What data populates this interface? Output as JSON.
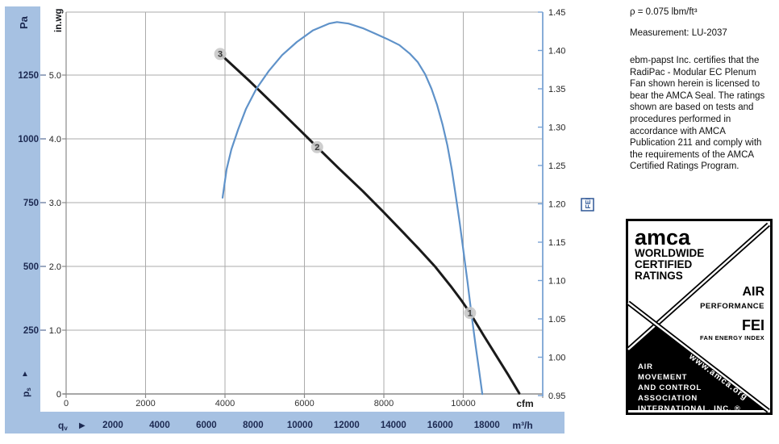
{
  "side_panel": {
    "density_note": "ρ = 0.075 lbm/ft³",
    "measurement": "Measurement: LU-2037",
    "certification_text": "ebm-papst Inc. certifies that the RadiPac - Modular EC Plenum Fan shown herein is licensed to bear the AMCA Seal. The ratings shown are based on tests and procedures performed in accordance with AMCA Publication 211 and comply with the requirements of the AMCA Certified Ratings Program."
  },
  "seal": {
    "logo": "amca",
    "worldwide": "WORLDWIDE",
    "certified": "CERTIFIED",
    "ratings": "RATINGS",
    "air": "AIR",
    "performance": "PERFORMANCE",
    "fei": "FEI",
    "fan_energy_index": "FAN ENERGY INDEX",
    "org_lines": [
      "AIR",
      "MOVEMENT",
      "AND CONTROL",
      "ASSOCIATION",
      "INTERNATIONAL, INC. ®"
    ],
    "url": "www.amca.org"
  },
  "chart_data": {
    "type": "line",
    "title": "",
    "grid": true,
    "axes": {
      "left_pa": {
        "label": "Pa",
        "corner_label": "ps",
        "corner_arrow": "▲",
        "tick_labels": [
          "1250",
          "1000",
          "750",
          "500",
          "250"
        ],
        "tick_values": [
          1250,
          1000,
          750,
          500,
          250
        ]
      },
      "left_inwg": {
        "label": "in.wg",
        "tick_labels": [
          "5.0",
          "4.0",
          "3.0",
          "2.0",
          "1.0",
          "0"
        ],
        "tick_values": [
          5,
          4,
          3,
          2,
          1,
          0
        ],
        "range": [
          0,
          5.99
        ]
      },
      "right_fei": {
        "label": "FEI",
        "tick_labels": [
          "1.45",
          "1.40",
          "1.35",
          "1.30",
          "1.25",
          "1.20",
          "1.15",
          "1.10",
          "1.05",
          "1.00",
          "0.95"
        ],
        "tick_values": [
          1.45,
          1.4,
          1.35,
          1.3,
          1.25,
          1.2,
          1.15,
          1.1,
          1.05,
          1.0,
          0.95
        ],
        "range": [
          0.95,
          1.45
        ]
      },
      "bottom_cfm": {
        "label": "cfm",
        "prefix": "qv",
        "prefix_arrow": "▶",
        "tick_labels": [
          "0",
          "2000",
          "4000",
          "6000",
          "8000",
          "10000"
        ],
        "tick_values": [
          0,
          2000,
          4000,
          6000,
          8000,
          10000
        ],
        "grid_values": [
          2000,
          4000,
          6000,
          8000,
          10000
        ],
        "range": [
          0,
          12000
        ]
      },
      "bottom_m3h": {
        "label": "m³/h",
        "tick_labels": [
          "2000",
          "4000",
          "6000",
          "8000",
          "10000",
          "12000",
          "14000",
          "16000",
          "18000"
        ],
        "tick_values": [
          2000,
          4000,
          6000,
          8000,
          10000,
          12000,
          14000,
          16000,
          18000
        ],
        "cfm_per_m3h": 0.58858
      }
    },
    "series": [
      {
        "name": "static-pressure-curve",
        "x_unit": "cfm",
        "y_unit": "in.wg",
        "y_axis": "left_inwg",
        "color": "#1a1a1a",
        "width": 3,
        "points": [
          [
            3880,
            5.33
          ],
          [
            4630,
            4.9
          ],
          [
            5240,
            4.53
          ],
          [
            5850,
            4.16
          ],
          [
            6320,
            3.87
          ],
          [
            6860,
            3.54
          ],
          [
            7470,
            3.18
          ],
          [
            7980,
            2.86
          ],
          [
            8490,
            2.53
          ],
          [
            8890,
            2.27
          ],
          [
            9300,
            1.99
          ],
          [
            9710,
            1.67
          ],
          [
            9950,
            1.47
          ],
          [
            10170,
            1.27
          ],
          [
            10520,
            0.91
          ],
          [
            10820,
            0.61
          ],
          [
            11130,
            0.3
          ],
          [
            11410,
            0.01
          ]
        ]
      },
      {
        "name": "fei-curve",
        "x_unit": "cfm",
        "y_unit": "FEI",
        "y_axis": "right_fei",
        "color": "#5f92c9",
        "width": 2.2,
        "points": [
          [
            3940,
            1.208
          ],
          [
            4040,
            1.245
          ],
          [
            4160,
            1.271
          ],
          [
            4330,
            1.297
          ],
          [
            4530,
            1.324
          ],
          [
            4790,
            1.35
          ],
          [
            5100,
            1.373
          ],
          [
            5440,
            1.394
          ],
          [
            5810,
            1.411
          ],
          [
            6210,
            1.426
          ],
          [
            6620,
            1.435
          ],
          [
            6820,
            1.437
          ],
          [
            7110,
            1.435
          ],
          [
            7470,
            1.429
          ],
          [
            7780,
            1.422
          ],
          [
            8080,
            1.415
          ],
          [
            8390,
            1.407
          ],
          [
            8650,
            1.396
          ],
          [
            8850,
            1.385
          ],
          [
            9040,
            1.369
          ],
          [
            9200,
            1.35
          ],
          [
            9340,
            1.329
          ],
          [
            9480,
            1.303
          ],
          [
            9600,
            1.276
          ],
          [
            9710,
            1.245
          ],
          [
            9810,
            1.211
          ],
          [
            9910,
            1.175
          ],
          [
            10010,
            1.136
          ],
          [
            10110,
            1.097
          ],
          [
            10210,
            1.055
          ],
          [
            10310,
            1.015
          ],
          [
            10400,
            0.982
          ],
          [
            10480,
            0.952
          ]
        ]
      }
    ],
    "markers": [
      {
        "label": "3",
        "cfm": 3880,
        "inwg": 5.33
      },
      {
        "label": "2",
        "cfm": 6320,
        "inwg": 3.87
      },
      {
        "label": "1",
        "cfm": 10170,
        "inwg": 1.27
      }
    ],
    "style": {
      "band_color": "#a6c1e2",
      "band_text_color": "#1c2951",
      "grid_color": "#ababab",
      "axis_color": "#8a8a8a",
      "fei_axis_color": "#7aa3d4",
      "marker_fill": "#c9c9c9",
      "label_color": "#333333"
    }
  }
}
